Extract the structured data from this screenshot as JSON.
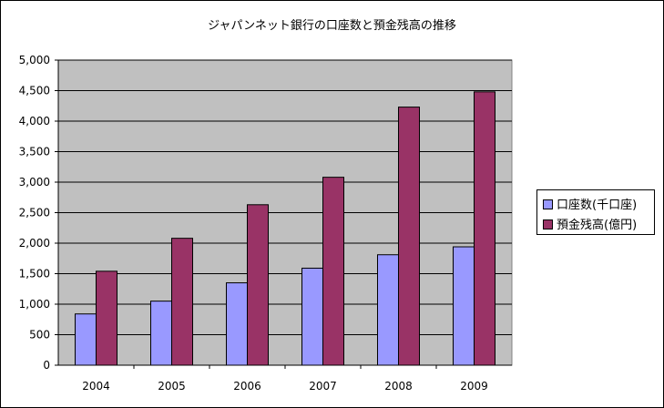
{
  "chart_data": {
    "type": "bar",
    "title": "ジャパンネット銀行の口座数と預金残高の推移",
    "categories": [
      "2004",
      "2005",
      "2006",
      "2007",
      "2008",
      "2009"
    ],
    "series": [
      {
        "name": "口座数(千口座)",
        "color": "#9999ff",
        "values": [
          840,
          1050,
          1350,
          1590,
          1810,
          1940
        ]
      },
      {
        "name": "預金残高(億円)",
        "color": "#993366",
        "values": [
          1540,
          2080,
          2630,
          3080,
          4230,
          4480
        ]
      }
    ],
    "y_ticks": [
      "0",
      "500",
      "1,000",
      "1,500",
      "2,000",
      "2,500",
      "3,000",
      "3,500",
      "4,000",
      "4,500",
      "5,000"
    ],
    "ylim": [
      0,
      5000
    ],
    "grid": true,
    "legend_position": "right",
    "plot_background": "#c0c0c0"
  }
}
